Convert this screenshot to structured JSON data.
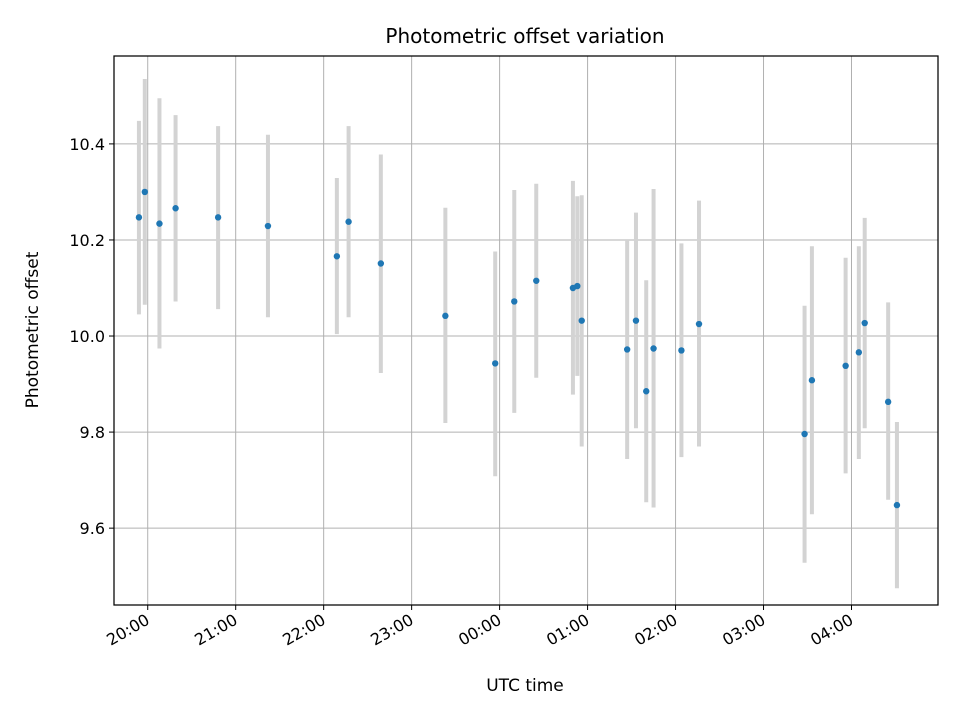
{
  "chart_data": {
    "type": "scatter",
    "title": "Photometric offset variation",
    "xlabel": "UTC time",
    "ylabel": "Photometric offset",
    "x_tick_labels": [
      "20:00",
      "21:00",
      "22:00",
      "23:00",
      "00:00",
      "01:00",
      "02:00",
      "03:00",
      "04:00"
    ],
    "y_tick_labels": [
      "9.6",
      "9.8",
      "10.0",
      "10.2",
      "10.4"
    ],
    "y_ticks": [
      9.6,
      9.8,
      10.0,
      10.2,
      10.4
    ],
    "x_ticks": [
      "2000-01-01T20:00",
      "2000-01-01T21:00",
      "2000-01-01T22:00",
      "2000-01-01T23:00",
      "2000-01-02T00:00",
      "2000-01-02T01:00",
      "2000-01-02T02:00",
      "2000-01-02T03:00",
      "2000-01-02T04:00"
    ],
    "xlim": [
      "2000-01-01T19:37",
      "2000-01-02T04:59"
    ],
    "ylim": [
      9.44,
      10.583
    ],
    "grid": true,
    "colors": {
      "marker": "#1f77b4",
      "errorbar": "#d3d3d3",
      "grid": "#b0b0b0"
    },
    "points": [
      {
        "x": "2000-01-01T19:54",
        "y": 10.247,
        "err_low": 10.045,
        "err_high": 10.448
      },
      {
        "x": "2000-01-01T19:58",
        "y": 10.3,
        "err_low": 10.065,
        "err_high": 10.535
      },
      {
        "x": "2000-01-01T20:08",
        "y": 10.234,
        "err_low": 9.974,
        "err_high": 10.495
      },
      {
        "x": "2000-01-01T20:19",
        "y": 10.266,
        "err_low": 10.072,
        "err_high": 10.46
      },
      {
        "x": "2000-01-01T20:48",
        "y": 10.247,
        "err_low": 10.056,
        "err_high": 10.437
      },
      {
        "x": "2000-01-01T21:22",
        "y": 10.229,
        "err_low": 10.039,
        "err_high": 10.419
      },
      {
        "x": "2000-01-01T22:09",
        "y": 10.166,
        "err_low": 10.004,
        "err_high": 10.329
      },
      {
        "x": "2000-01-01T22:17",
        "y": 10.238,
        "err_low": 10.039,
        "err_high": 10.437
      },
      {
        "x": "2000-01-01T22:39",
        "y": 10.151,
        "err_low": 9.923,
        "err_high": 10.378
      },
      {
        "x": "2000-01-01T23:23",
        "y": 10.042,
        "err_low": 9.819,
        "err_high": 10.267
      },
      {
        "x": "2000-01-01T23:57",
        "y": 9.943,
        "err_low": 9.708,
        "err_high": 10.176
      },
      {
        "x": "2000-01-02T00:10",
        "y": 10.072,
        "err_low": 9.84,
        "err_high": 10.304
      },
      {
        "x": "2000-01-02T00:25",
        "y": 10.115,
        "err_low": 9.913,
        "err_high": 10.317
      },
      {
        "x": "2000-01-02T00:50",
        "y": 10.1,
        "err_low": 9.878,
        "err_high": 10.323
      },
      {
        "x": "2000-01-02T00:53",
        "y": 10.104,
        "err_low": 9.917,
        "err_high": 10.291
      },
      {
        "x": "2000-01-02T00:56",
        "y": 10.032,
        "err_low": 9.77,
        "err_high": 10.293
      },
      {
        "x": "2000-01-02T01:27",
        "y": 9.972,
        "err_low": 9.744,
        "err_high": 10.2
      },
      {
        "x": "2000-01-02T01:33",
        "y": 10.032,
        "err_low": 9.808,
        "err_high": 10.257
      },
      {
        "x": "2000-01-02T01:40",
        "y": 9.885,
        "err_low": 9.654,
        "err_high": 10.116
      },
      {
        "x": "2000-01-02T01:45",
        "y": 9.974,
        "err_low": 9.643,
        "err_high": 10.306
      },
      {
        "x": "2000-01-02T02:04",
        "y": 9.97,
        "err_low": 9.748,
        "err_high": 10.193
      },
      {
        "x": "2000-01-02T02:16",
        "y": 10.025,
        "err_low": 9.77,
        "err_high": 10.282
      },
      {
        "x": "2000-01-02T03:28",
        "y": 9.796,
        "err_low": 9.528,
        "err_high": 10.063
      },
      {
        "x": "2000-01-02T03:33",
        "y": 9.908,
        "err_low": 9.629,
        "err_high": 10.187
      },
      {
        "x": "2000-01-02T03:56",
        "y": 9.938,
        "err_low": 9.714,
        "err_high": 10.163
      },
      {
        "x": "2000-01-02T04:05",
        "y": 9.966,
        "err_low": 9.744,
        "err_high": 10.187
      },
      {
        "x": "2000-01-02T04:09",
        "y": 10.027,
        "err_low": 9.808,
        "err_high": 10.246
      },
      {
        "x": "2000-01-02T04:25",
        "y": 9.863,
        "err_low": 9.659,
        "err_high": 10.07
      },
      {
        "x": "2000-01-02T04:31",
        "y": 9.648,
        "err_low": 9.475,
        "err_high": 9.821
      }
    ]
  }
}
